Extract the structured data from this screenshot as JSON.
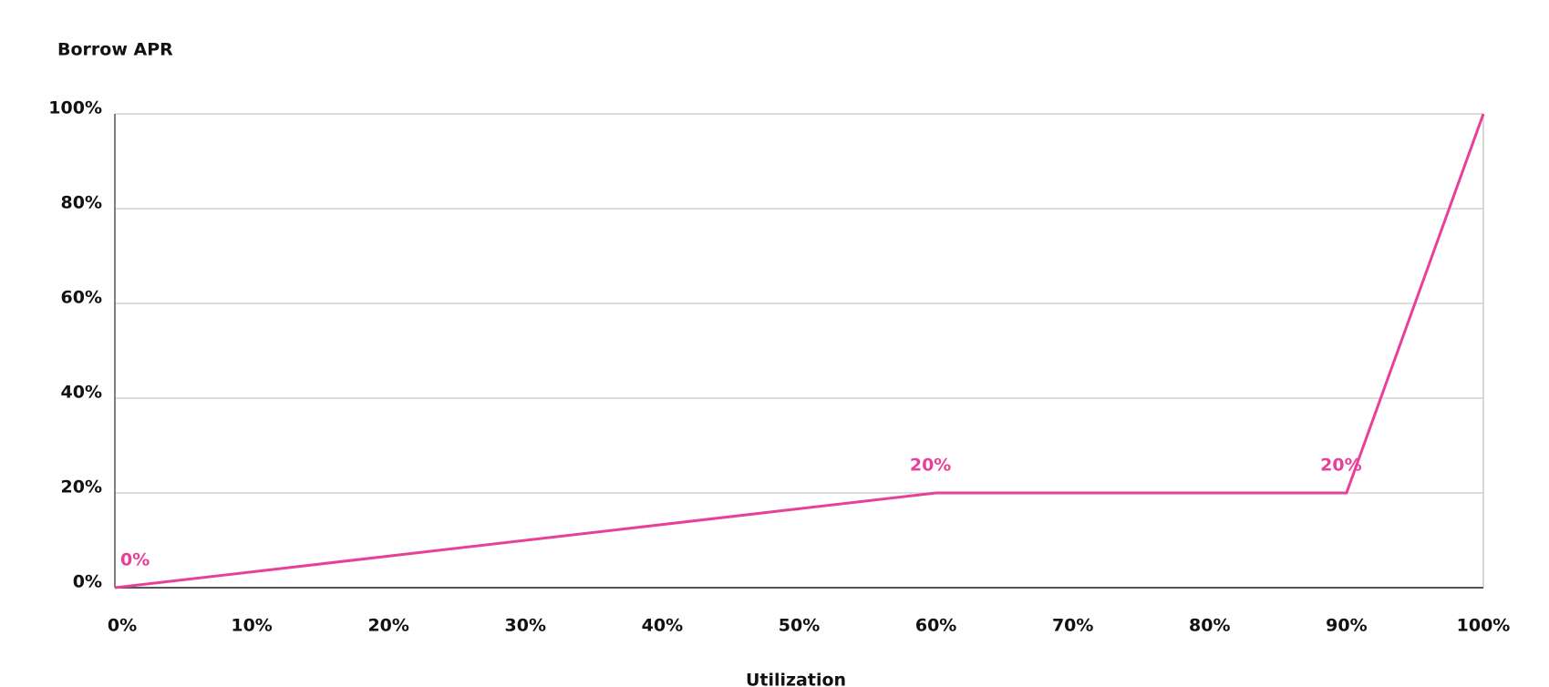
{
  "chart_data": {
    "type": "line",
    "title": "Borrow APR",
    "x_label": "Utilization",
    "x": [
      0,
      60,
      90,
      100
    ],
    "values": [
      0,
      20,
      20,
      100
    ],
    "value_labels": [
      "0%",
      "20%",
      "20%",
      null
    ],
    "color": "#e8409a",
    "xlim": [
      0,
      100
    ],
    "xticks": [
      {
        "value": 0,
        "label": "0%"
      },
      {
        "value": 10,
        "label": "10%"
      },
      {
        "value": 20,
        "label": "20%"
      },
      {
        "value": 30,
        "label": "30%"
      },
      {
        "value": 40,
        "label": "40%"
      },
      {
        "value": 50,
        "label": "50%"
      },
      {
        "value": 60,
        "label": "60%"
      },
      {
        "value": 70,
        "label": "70%"
      },
      {
        "value": 80,
        "label": "80%"
      },
      {
        "value": 90,
        "label": "90%"
      },
      {
        "value": 100,
        "label": "100%"
      }
    ],
    "ylim": [
      0,
      100
    ],
    "yticks": [
      {
        "value": 0,
        "label": "0%"
      },
      {
        "value": 20,
        "label": "20%"
      },
      {
        "value": 40,
        "label": "40%"
      },
      {
        "value": 60,
        "label": "60%"
      },
      {
        "value": 80,
        "label": "80%"
      },
      {
        "value": 100,
        "label": "100%"
      }
    ],
    "grid": true
  }
}
